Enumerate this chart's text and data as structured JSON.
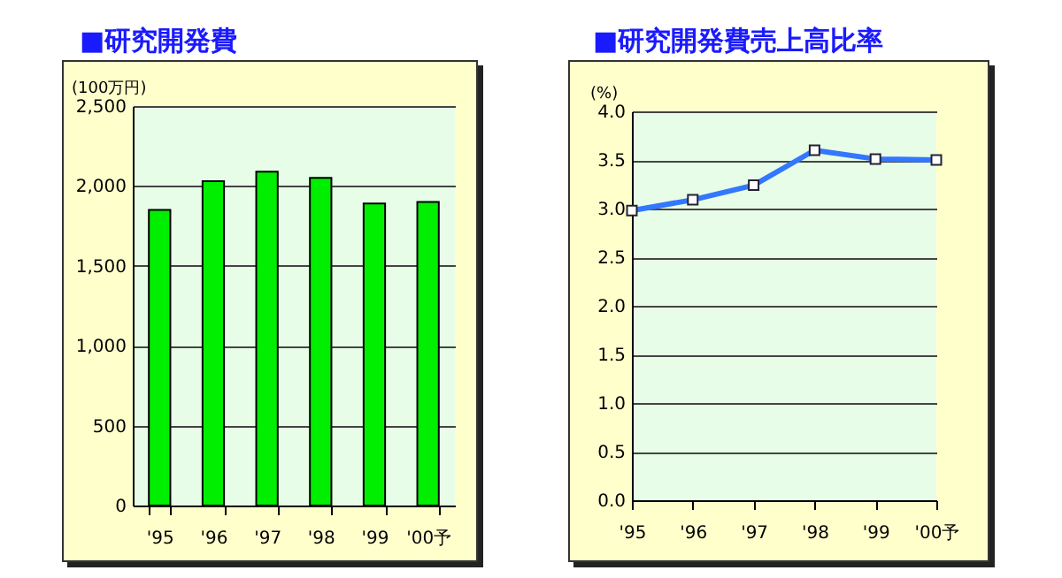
{
  "chart_data": [
    {
      "type": "bar",
      "title": "■研究開発費",
      "ylabel": "(100万円)",
      "categories": [
        "'95",
        "'96",
        "'97",
        "'98",
        "'99",
        "'00予"
      ],
      "values": [
        1850,
        2030,
        2090,
        2050,
        1890,
        1900
      ],
      "color": "#00ee00",
      "ylim": [
        0,
        2500
      ],
      "yticks": [
        0,
        500,
        {
          "value": 1000,
          "label": "1,000"
        },
        {
          "value": 1500,
          "label": "1,500"
        },
        {
          "value": 2000,
          "label": "2,000"
        },
        {
          "value": 2500,
          "label": "2,500"
        }
      ],
      "grid": "y"
    },
    {
      "type": "line",
      "title": "■研究開発費売上高比率",
      "ylabel": "(%)",
      "categories": [
        "'95",
        "'96",
        "'97",
        "'98",
        "'99",
        "'00予"
      ],
      "values": [
        2.98,
        3.09,
        3.24,
        3.6,
        3.51,
        3.5
      ],
      "color": "#3377ff",
      "marker": "square",
      "ylim": [
        0,
        4
      ],
      "yticks": [
        {
          "value": 0,
          "label": "0.0"
        },
        {
          "value": 0.5,
          "label": "0.5"
        },
        {
          "value": 1,
          "label": "1.0"
        },
        {
          "value": 1.5,
          "label": "1.5"
        },
        {
          "value": 2,
          "label": "2.0"
        },
        {
          "value": 2.5,
          "label": "2.5"
        },
        {
          "value": 3,
          "label": "3.0"
        },
        {
          "value": 3.5,
          "label": "3.5"
        },
        {
          "value": 4,
          "label": "4.0"
        }
      ],
      "grid": "y"
    }
  ]
}
